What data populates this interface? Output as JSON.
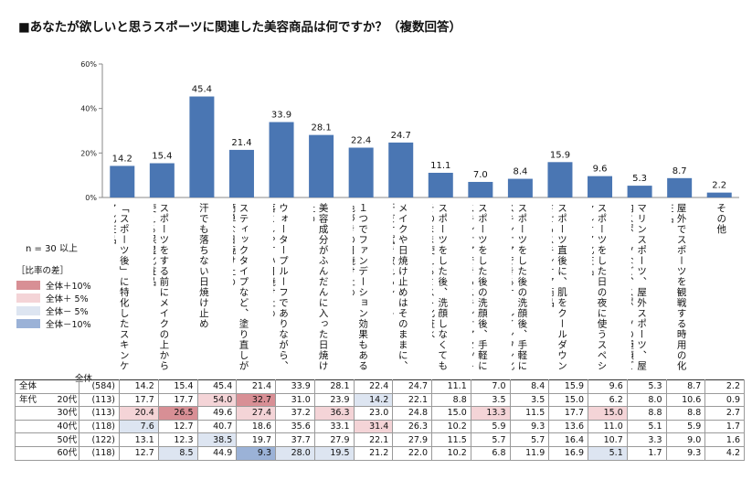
{
  "title": "■あなたが欲しいと思うスポーツに関連した美容商品は何ですか？（複数回答）",
  "n_label": "n = 30 以上",
  "legend": {
    "title": "［比率の差］",
    "items": [
      {
        "label": "全体＋10%",
        "color": "#d88f95"
      },
      {
        "label": "全体＋ 5%",
        "color": "#f4d4d7"
      },
      {
        "label": "全体－ 5%",
        "color": "#dde5f1"
      },
      {
        "label": "全体－10%",
        "color": "#9bb2d7"
      }
    ]
  },
  "chart_data": {
    "type": "bar",
    "ylim": [
      0,
      60
    ],
    "yticks": [
      "0%",
      "20%",
      "40%",
      "60%"
    ],
    "ytick_values": [
      0,
      20,
      40,
      60
    ],
    "bar_color": "#4a76b3",
    "categories": [
      "「スポーツ後」に特化したスキンケア化粧品",
      "スポーツをする前にメイクの上から使える保湿化粧品",
      "汗でも落ちない日焼け止め",
      "スティックタイプなど、塗り直しが簡単な日焼け止め",
      "ウォータープルーフでありながら、落としやすい日焼け止め",
      "美容成分がふんだんに入った日焼け止め",
      "１つでファンデーション効果もある色づきの日焼け止め",
      "メイクや日焼け止めはそのままに、汗だけ拭き取れるシート",
      "スポーツをした後、洗顔しなくてもそのまま使えるミスト化粧水",
      "スポーツをした後の洗顔後、手軽にスキンケアできるスキンケアセット",
      "スポーツをした後の洗顔後、手軽にスキンケアできるオールインワン化粧品",
      "スポーツ直後に、肌をクールダウンさせるスキンケア商品",
      "スポーツをした日の夜に使うスペシャルケア化粧品",
      "マリンスポーツ、屋外スポーツ、屋内スポーツなど、スポーツの種類ごとのスキンケア化粧品",
      "屋外でスポーツを観戦する時用の化粧品",
      "その他"
    ],
    "values": [
      14.2,
      15.4,
      45.4,
      21.4,
      33.9,
      28.1,
      22.4,
      24.7,
      11.1,
      7.0,
      8.4,
      15.9,
      9.6,
      5.3,
      8.7,
      2.2
    ]
  },
  "table": {
    "total_header": "全体",
    "rows": [
      {
        "group": "全体",
        "sub": "",
        "n": "(584)",
        "values": [
          "14.2",
          "15.4",
          "45.4",
          "21.4",
          "33.9",
          "28.1",
          "22.4",
          "24.7",
          "11.1",
          "7.0",
          "8.4",
          "15.9",
          "9.6",
          "5.3",
          "8.7",
          "2.2"
        ],
        "hl": [
          0,
          0,
          0,
          0,
          0,
          0,
          0,
          0,
          0,
          0,
          0,
          0,
          0,
          0,
          0,
          0
        ]
      },
      {
        "group": "年代",
        "sub": "20代",
        "n": "(113)",
        "values": [
          "17.7",
          "17.7",
          "54.0",
          "32.7",
          "31.0",
          "23.9",
          "14.2",
          "22.1",
          "8.8",
          "3.5",
          "3.5",
          "15.0",
          "6.2",
          "8.0",
          "10.6",
          "0.9"
        ],
        "hl": [
          0,
          0,
          2,
          1,
          0,
          0,
          3,
          0,
          0,
          0,
          0,
          0,
          0,
          0,
          0,
          0
        ]
      },
      {
        "group": "",
        "sub": "30代",
        "n": "(113)",
        "values": [
          "20.4",
          "26.5",
          "49.6",
          "27.4",
          "37.2",
          "36.3",
          "23.0",
          "24.8",
          "15.0",
          "13.3",
          "11.5",
          "17.7",
          "15.0",
          "8.8",
          "8.8",
          "2.7"
        ],
        "hl": [
          2,
          1,
          0,
          2,
          0,
          2,
          0,
          0,
          0,
          2,
          0,
          0,
          2,
          0,
          0,
          0
        ]
      },
      {
        "group": "",
        "sub": "40代",
        "n": "(118)",
        "values": [
          "7.6",
          "12.7",
          "40.7",
          "18.6",
          "35.6",
          "33.1",
          "31.4",
          "26.3",
          "10.2",
          "5.9",
          "9.3",
          "13.6",
          "11.0",
          "5.1",
          "5.9",
          "1.7"
        ],
        "hl": [
          3,
          0,
          0,
          0,
          0,
          0,
          2,
          0,
          0,
          0,
          0,
          0,
          0,
          0,
          0,
          0
        ]
      },
      {
        "group": "",
        "sub": "50代",
        "n": "(122)",
        "values": [
          "13.1",
          "12.3",
          "38.5",
          "19.7",
          "37.7",
          "27.9",
          "22.1",
          "27.9",
          "11.5",
          "5.7",
          "5.7",
          "16.4",
          "10.7",
          "3.3",
          "9.0",
          "1.6"
        ],
        "hl": [
          0,
          0,
          3,
          0,
          0,
          0,
          0,
          0,
          0,
          0,
          0,
          0,
          0,
          0,
          0,
          0
        ]
      },
      {
        "group": "",
        "sub": "60代",
        "n": "(118)",
        "values": [
          "12.7",
          "8.5",
          "44.9",
          "9.3",
          "28.0",
          "19.5",
          "21.2",
          "22.0",
          "10.2",
          "6.8",
          "11.9",
          "16.9",
          "5.1",
          "1.7",
          "9.3",
          "4.2"
        ],
        "hl": [
          0,
          3,
          0,
          4,
          3,
          3,
          0,
          0,
          0,
          0,
          0,
          0,
          3,
          0,
          0,
          0
        ]
      }
    ]
  }
}
